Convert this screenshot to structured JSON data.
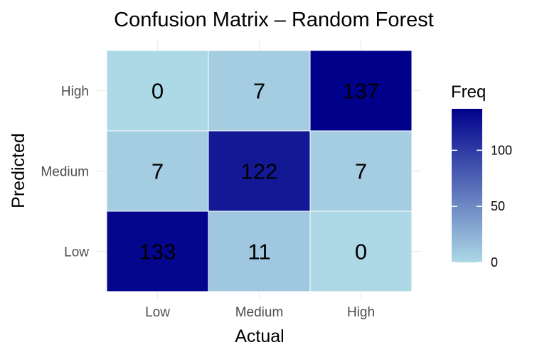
{
  "chart_data": {
    "type": "heatmap",
    "title": "Confusion Matrix – Random Forest",
    "xlabel": "Actual",
    "ylabel": "Predicted",
    "x_categories": [
      "Low",
      "Medium",
      "High"
    ],
    "y_categories": [
      "Low",
      "Medium",
      "High"
    ],
    "cells": [
      {
        "actual": "Low",
        "predicted": "High",
        "value": 0
      },
      {
        "actual": "Medium",
        "predicted": "High",
        "value": 7
      },
      {
        "actual": "High",
        "predicted": "High",
        "value": 137
      },
      {
        "actual": "Low",
        "predicted": "Medium",
        "value": 7
      },
      {
        "actual": "Medium",
        "predicted": "Medium",
        "value": 122
      },
      {
        "actual": "High",
        "predicted": "Medium",
        "value": 7
      },
      {
        "actual": "Low",
        "predicted": "Low",
        "value": 133
      },
      {
        "actual": "Medium",
        "predicted": "Low",
        "value": 11
      },
      {
        "actual": "High",
        "predicted": "Low",
        "value": 0
      }
    ],
    "legend": {
      "title": "Freq",
      "ticks": [
        0,
        50,
        100
      ],
      "min": 0,
      "max": 137,
      "low_color": "#add8e6",
      "high_color": "#00008b"
    },
    "grid": true
  }
}
